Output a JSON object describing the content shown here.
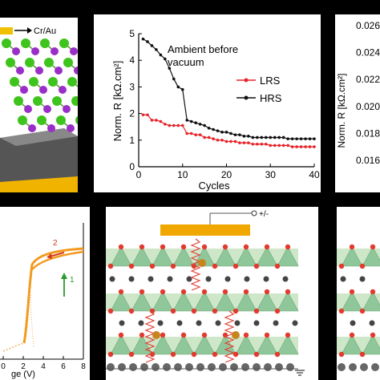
{
  "panel_cr": {
    "electrode_label": "Cr/Au"
  },
  "chart_data": [
    {
      "type": "line",
      "annotation": "Ambient before vacuum",
      "xlabel": "Cycles",
      "ylabel": "Norm. R [kΩ.cm²]",
      "xlim": [
        0,
        40
      ],
      "ylim": [
        0,
        5
      ],
      "xticks": [
        "0",
        "10",
        "20",
        "30",
        "40"
      ],
      "yticks": [
        "0",
        "1",
        "2",
        "3",
        "4",
        "5"
      ],
      "legend": "right",
      "series": [
        {
          "name": "LRS",
          "color": "#e8242a",
          "x": [
            1,
            2,
            3,
            4,
            5,
            6,
            7,
            8,
            9,
            10,
            11,
            12,
            13,
            14,
            15,
            16,
            17,
            18,
            19,
            20,
            21,
            22,
            23,
            24,
            25,
            26,
            27,
            28,
            29,
            30,
            31,
            32,
            33,
            34,
            35,
            36,
            37,
            38,
            39,
            40
          ],
          "y": [
            1.95,
            1.95,
            1.75,
            1.75,
            1.7,
            1.6,
            1.55,
            1.55,
            1.55,
            1.55,
            1.25,
            1.25,
            1.2,
            1.2,
            1.1,
            1.1,
            1.05,
            1.0,
            1.0,
            0.95,
            0.95,
            0.95,
            0.9,
            0.9,
            0.9,
            0.85,
            0.85,
            0.85,
            0.85,
            0.8,
            0.8,
            0.8,
            0.8,
            0.8,
            0.75,
            0.75,
            0.75,
            0.75,
            0.75,
            0.75
          ]
        },
        {
          "name": "HRS",
          "color": "#111111",
          "x": [
            1,
            2,
            3,
            4,
            5,
            6,
            7,
            8,
            9,
            10,
            11,
            12,
            13,
            14,
            15,
            16,
            17,
            18,
            19,
            20,
            21,
            22,
            23,
            24,
            25,
            26,
            27,
            28,
            29,
            30,
            31,
            32,
            33,
            34,
            35,
            36,
            37,
            38,
            39,
            40
          ],
          "y": [
            4.8,
            4.7,
            4.55,
            4.4,
            4.2,
            4.05,
            3.7,
            3.3,
            3.0,
            2.9,
            1.75,
            1.7,
            1.65,
            1.6,
            1.55,
            1.45,
            1.4,
            1.35,
            1.3,
            1.3,
            1.25,
            1.2,
            1.2,
            1.15,
            1.15,
            1.1,
            1.1,
            1.1,
            1.1,
            1.1,
            1.1,
            1.1,
            1.1,
            1.05,
            1.05,
            1.05,
            1.05,
            1.05,
            1.05,
            1.05
          ]
        }
      ]
    },
    {
      "type": "line",
      "ylabel": "Norm. R [kΩ.cm²]",
      "yticks": [
        "0.016",
        "0.018",
        "0.020",
        "0.022",
        "0.024",
        "0.026"
      ]
    },
    {
      "type": "line",
      "xlabel": "ge (V)",
      "xticks": [
        "0",
        "2",
        "4",
        "6",
        "8"
      ],
      "xlim": [
        0,
        8
      ],
      "annotations": [
        "2",
        "1"
      ]
    }
  ],
  "panel_lattice": {
    "bias_label": "+/-"
  }
}
